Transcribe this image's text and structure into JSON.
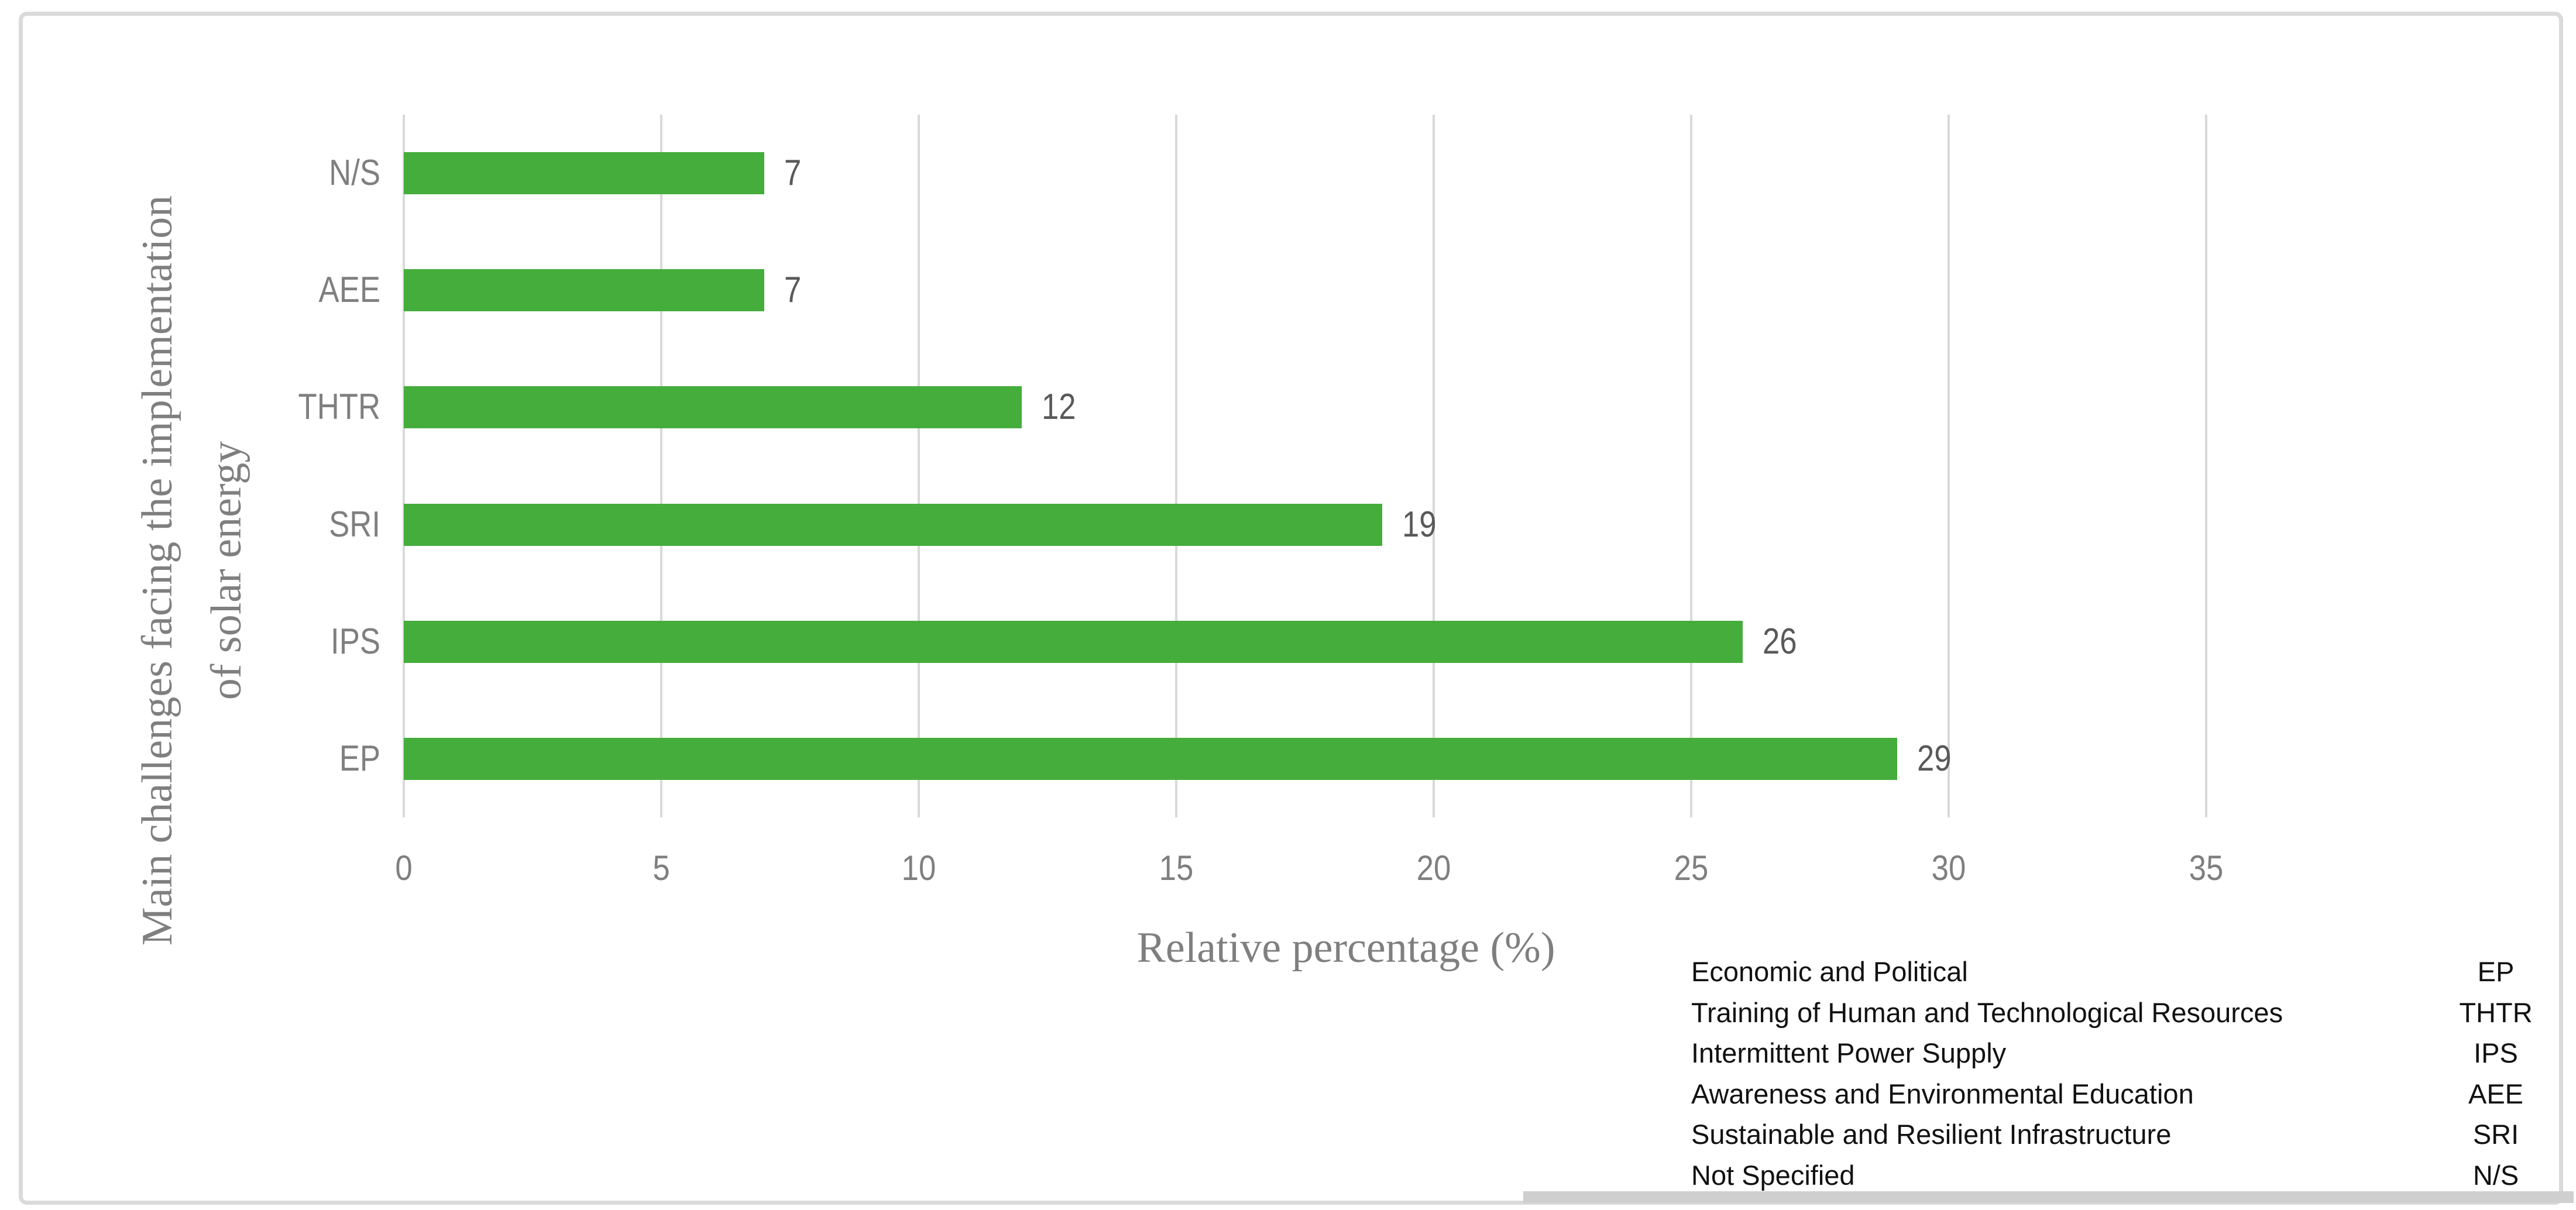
{
  "figure": {
    "background": "#FFFFFF",
    "frame_color": "#DADADA"
  },
  "chart_data": {
    "type": "bar",
    "orientation": "horizontal",
    "title": "",
    "categories": [
      "N/S",
      "AEE",
      "THTR",
      "SRI",
      "IPS",
      "EP"
    ],
    "values": [
      7,
      7,
      12,
      19,
      26,
      29
    ],
    "value_labels": [
      "7",
      "7",
      "12",
      "19",
      "26",
      "29"
    ],
    "bar_color": "#44AD3C",
    "xlabel": "Relative percentage (%)",
    "ylabel_line1": "Main challenges facing the implementation",
    "ylabel_line2": "of solar energy",
    "xticks": [
      0,
      5,
      10,
      15,
      20,
      25,
      30,
      35
    ],
    "xlim": [
      0,
      39
    ],
    "grid": true,
    "gridline_color": "#D9D9D9",
    "tick_label_color": "#7F7F7F",
    "value_label_color": "#595959",
    "axis_title_color": "#7F7F7F",
    "legend_position": "bottom-right"
  },
  "legend": {
    "text_color": "#111111",
    "rows": [
      {
        "name": "Economic and Political",
        "abbr": "EP"
      },
      {
        "name": "Training of Human and Technological Resources",
        "abbr": "THTR"
      },
      {
        "name": "Intermittent Power Supply",
        "abbr": "IPS"
      },
      {
        "name": "Awareness and Environmental Education",
        "abbr": "AEE"
      },
      {
        "name": "Sustainable and Resilient Infrastructure",
        "abbr": "SRI"
      },
      {
        "name": "Not Specified",
        "abbr": "N/S"
      }
    ]
  }
}
